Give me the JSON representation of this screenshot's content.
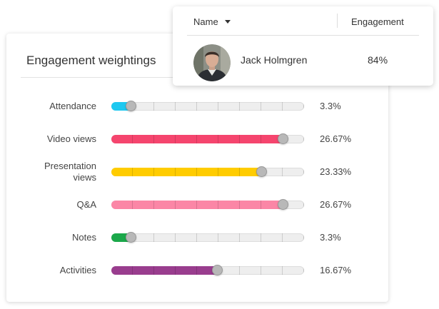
{
  "weightings": {
    "title": "Engagement weightings",
    "rows": [
      {
        "label": "Attendance",
        "fraction": 0.1,
        "value": "3.3%",
        "color": "#1ec8f0"
      },
      {
        "label": "Video views",
        "fraction": 0.89,
        "value": "26.67%",
        "color": "#f5456e"
      },
      {
        "label": "Presentation views",
        "fraction": 0.78,
        "value": "23.33%",
        "color": "#ffcc00"
      },
      {
        "label": "Q&A",
        "fraction": 0.89,
        "value": "26.67%",
        "color": "#fb86a6"
      },
      {
        "label": "Notes",
        "fraction": 0.1,
        "value": "3.3%",
        "color": "#1ba84a"
      },
      {
        "label": "Activities",
        "fraction": 0.55,
        "value": "16.67%",
        "color": "#993d8e"
      }
    ]
  },
  "engagement_table": {
    "columns": {
      "name": "Name",
      "engagement": "Engagement"
    },
    "sort_icon": "caret-down-icon",
    "row": {
      "name": "Jack Holmgren",
      "engagement": "84%",
      "avatar_icon": "user-avatar-photo"
    }
  }
}
